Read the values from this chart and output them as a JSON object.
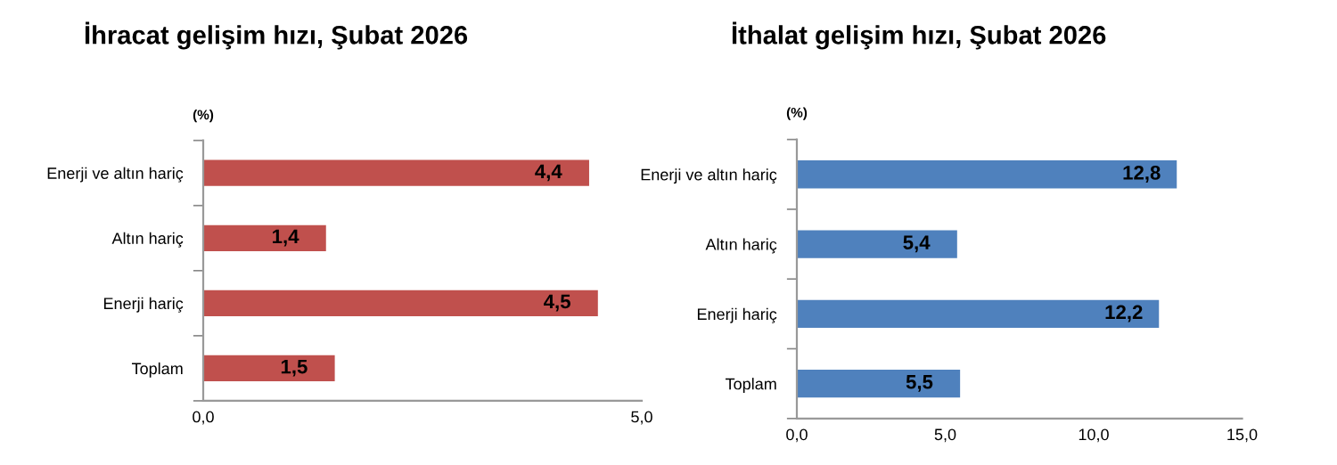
{
  "chart_data": [
    {
      "type": "bar",
      "orientation": "horizontal",
      "title": "İhracat gelişim hızı, Şubat 2026",
      "annotations": [
        "(%)"
      ],
      "categories": [
        "Enerji ve altın hariç",
        "Altın hariç",
        "Enerji hariç",
        "Toplam"
      ],
      "values": [
        4.4,
        1.4,
        4.5,
        1.5
      ],
      "value_labels": [
        "4,4",
        "1,4",
        "4,5",
        "1,5"
      ],
      "color": "#c0504d",
      "xlim": [
        0,
        5
      ],
      "xticks": [
        {
          "value": 0,
          "label": "0,0"
        },
        {
          "value": 5,
          "label": "5,0"
        }
      ],
      "grid": false,
      "legend": false
    },
    {
      "type": "bar",
      "orientation": "horizontal",
      "title": "İthalat gelişim hızı, Şubat 2026",
      "annotations": [
        "(%)"
      ],
      "categories": [
        "Enerji ve altın hariç",
        "Altın hariç",
        "Enerji hariç",
        "Toplam"
      ],
      "values": [
        12.8,
        5.4,
        12.2,
        5.5
      ],
      "value_labels": [
        "12,8",
        "5,4",
        "12,2",
        "5,5"
      ],
      "color": "#4f81bd",
      "xlim": [
        0,
        15
      ],
      "xticks": [
        {
          "value": 0,
          "label": "0,0"
        },
        {
          "value": 5,
          "label": "5,0"
        },
        {
          "value": 10,
          "label": "10,0"
        },
        {
          "value": 15,
          "label": "15,0"
        }
      ],
      "grid": false,
      "legend": false
    }
  ]
}
